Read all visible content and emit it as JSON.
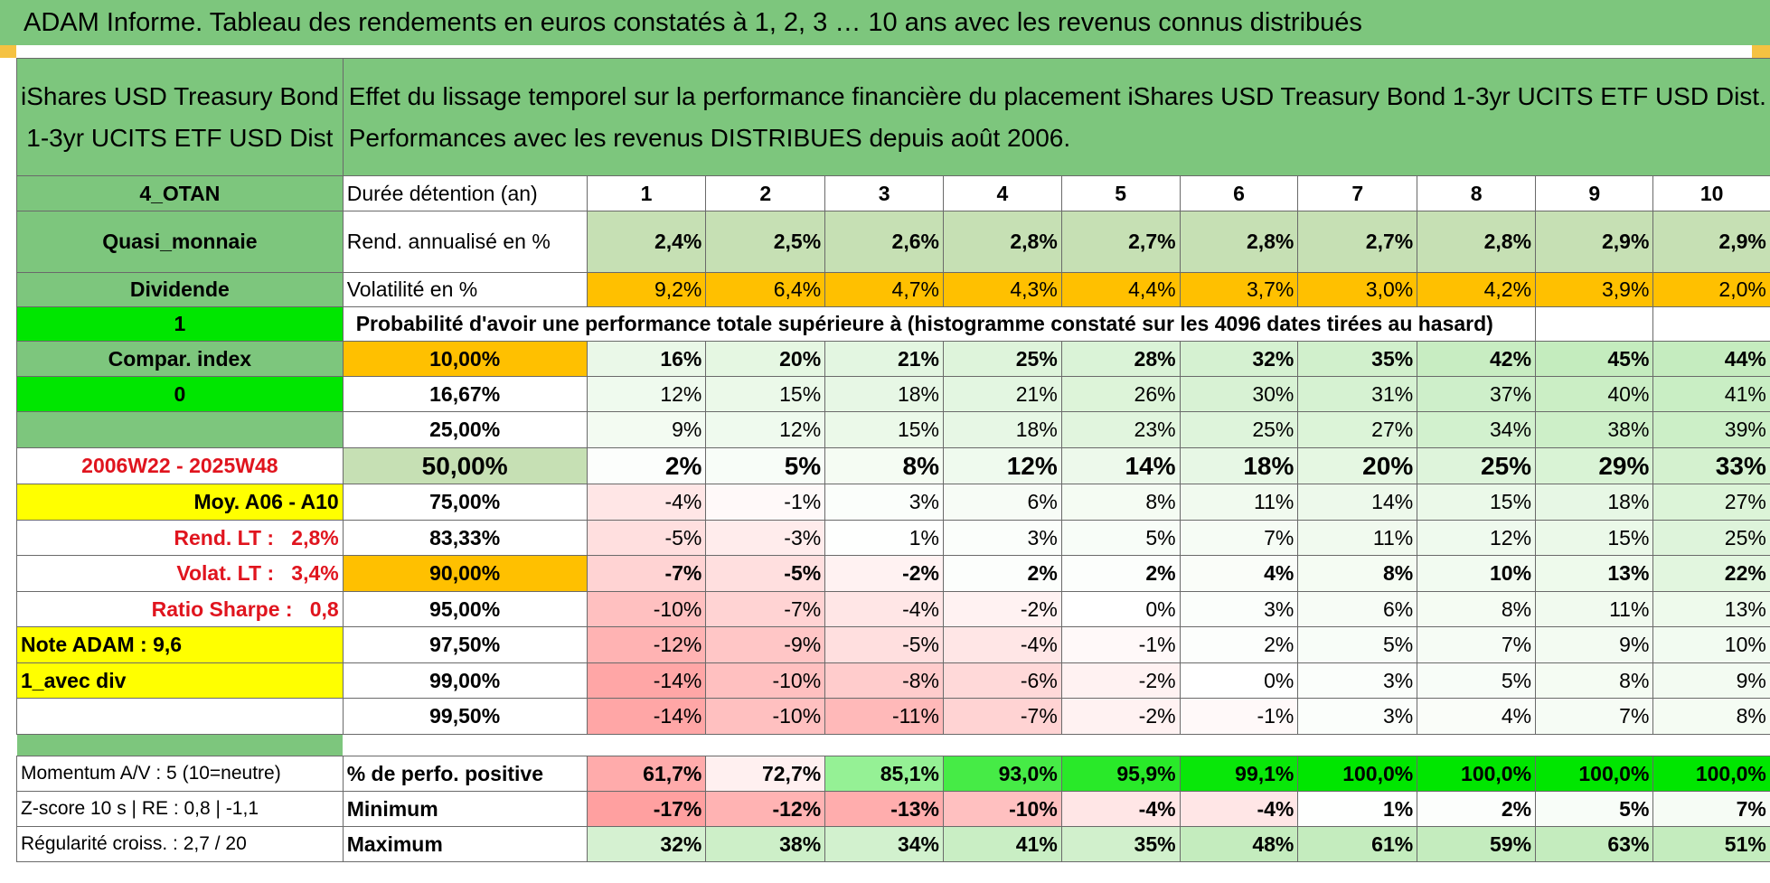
{
  "header": {
    "title": "ADAM Informe. Tableau des rendements en euros constatés à 1, 2, 3 … 10 ans avec les revenus connus distribués"
  },
  "fund": {
    "name_line1": "iShares USD Treasury Bond",
    "name_line2": "1-3yr UCITS ETF USD Dist",
    "desc_line1": "Effet du lissage temporel sur la performance financière du placement iShares USD Treasury Bond 1-3yr UCITS ETF USD Dist.",
    "desc_line2": "Performances avec les revenus DISTRIBUES depuis août 2006."
  },
  "sidebar": {
    "category": "4_OTAN",
    "type": "Quasi_monnaie",
    "income": "Dividende",
    "flag1": "1",
    "compar_index": "Compar. index",
    "flag0": "0",
    "period": "2006W22 - 2025W48",
    "avg": "Moy. A06 - A10",
    "rend_lt_label": "Rend. LT :",
    "rend_lt_value": "2,8%",
    "volat_lt_label": "Volat. LT :",
    "volat_lt_value": "3,4%",
    "sharpe_label": "Ratio Sharpe :",
    "sharpe_value": "0,8",
    "note": "Note ADAM : 9,6",
    "mode": "1_avec div"
  },
  "table": {
    "duration_label": "Durée détention (an)",
    "years": [
      "1",
      "2",
      "3",
      "4",
      "5",
      "6",
      "7",
      "8",
      "9",
      "10"
    ],
    "rend_label": "Rend. annualisé en %",
    "rend": [
      "2,4%",
      "2,5%",
      "2,6%",
      "2,8%",
      "2,7%",
      "2,8%",
      "2,7%",
      "2,8%",
      "2,9%",
      "2,9%"
    ],
    "vol_label": "Volatilité en %",
    "vol": [
      "9,2%",
      "6,4%",
      "4,7%",
      "4,3%",
      "4,4%",
      "3,7%",
      "3,0%",
      "4,2%",
      "3,9%",
      "2,0%"
    ],
    "prob_caption": "Probabilité d'avoir une performance totale supérieure à (histogramme constaté sur les 4096 dates tirées au hasard)",
    "thresholds": [
      "10,00%",
      "16,67%",
      "25,00%",
      "50,00%",
      "75,00%",
      "83,33%",
      "90,00%",
      "95,00%",
      "97,50%",
      "99,00%",
      "99,50%"
    ],
    "prob_rows": [
      [
        "16%",
        "20%",
        "21%",
        "25%",
        "28%",
        "32%",
        "35%",
        "42%",
        "45%",
        "44%"
      ],
      [
        "12%",
        "15%",
        "18%",
        "21%",
        "26%",
        "30%",
        "31%",
        "37%",
        "40%",
        "41%"
      ],
      [
        "9%",
        "12%",
        "15%",
        "18%",
        "23%",
        "25%",
        "27%",
        "34%",
        "38%",
        "39%"
      ],
      [
        "2%",
        "5%",
        "8%",
        "12%",
        "14%",
        "18%",
        "20%",
        "25%",
        "29%",
        "33%"
      ],
      [
        "-4%",
        "-1%",
        "3%",
        "6%",
        "8%",
        "11%",
        "14%",
        "15%",
        "18%",
        "27%"
      ],
      [
        "-5%",
        "-3%",
        "1%",
        "3%",
        "5%",
        "7%",
        "11%",
        "12%",
        "15%",
        "25%"
      ],
      [
        "-7%",
        "-5%",
        "-2%",
        "2%",
        "2%",
        "4%",
        "8%",
        "10%",
        "13%",
        "22%"
      ],
      [
        "-10%",
        "-7%",
        "-4%",
        "-2%",
        "0%",
        "3%",
        "6%",
        "8%",
        "11%",
        "13%"
      ],
      [
        "-12%",
        "-9%",
        "-5%",
        "-4%",
        "-1%",
        "2%",
        "5%",
        "7%",
        "9%",
        "10%"
      ],
      [
        "-14%",
        "-10%",
        "-8%",
        "-6%",
        "-2%",
        "0%",
        "3%",
        "5%",
        "8%",
        "9%"
      ],
      [
        "-14%",
        "-10%",
        "-11%",
        "-7%",
        "-2%",
        "-1%",
        "3%",
        "4%",
        "7%",
        "8%"
      ]
    ],
    "stats": [
      {
        "left": "Momentum A/V : 5 (10=neutre)",
        "label": "% de perfo. positive",
        "values": [
          "61,7%",
          "72,7%",
          "85,1%",
          "93,0%",
          "95,9%",
          "99,1%",
          "100,0%",
          "100,0%",
          "100,0%",
          "100,0%"
        ]
      },
      {
        "left": "Z-score 10 s | RE : 0,8 | -1,1",
        "label": "Minimum",
        "values": [
          "-17%",
          "-12%",
          "-13%",
          "-10%",
          "-4%",
          "-4%",
          "1%",
          "2%",
          "5%",
          "7%"
        ]
      },
      {
        "left": "Régularité croiss. : 2,7 / 20",
        "label": "Maximum",
        "values": [
          "32%",
          "38%",
          "34%",
          "41%",
          "35%",
          "48%",
          "61%",
          "59%",
          "63%",
          "51%"
        ]
      }
    ]
  },
  "colors": {
    "header_green": "#7dc67d",
    "light_green": "#c6e0b4",
    "bright_green": "#00e600",
    "yellow": "#ffff00",
    "orange": "#ffc000",
    "red_text": "#e0141e"
  }
}
